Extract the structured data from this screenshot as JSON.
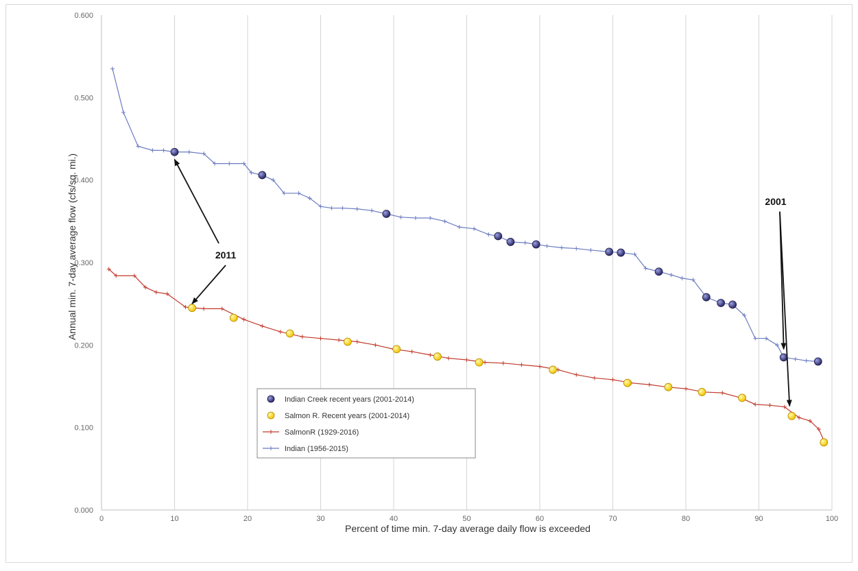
{
  "chart_data": {
    "type": "line",
    "xlabel": "Percent of time min. 7-day average daily flow is exceeded",
    "ylabel": "Annual min. 7-day average flow (cfs/sq. mi.)",
    "xlim": [
      0,
      100
    ],
    "ylim": [
      0.0,
      0.6
    ],
    "x_ticks": [
      0,
      10,
      20,
      30,
      40,
      50,
      60,
      70,
      80,
      90,
      100
    ],
    "y_ticks": [
      0.0,
      0.1,
      0.2,
      0.3,
      0.4,
      0.5,
      0.6
    ],
    "y_tick_labels": [
      "0.000",
      "0.100",
      "0.200",
      "0.300",
      "0.400",
      "0.500",
      "0.600"
    ],
    "grid": "vertical",
    "legend_placement": "lower-left-center",
    "series": [
      {
        "name": "Indian Creek recent years (2001-2014)",
        "marker": "circle",
        "color": "#3d3a7a",
        "line": false,
        "x": [
          10,
          22,
          39,
          54.3,
          56,
          59.5,
          69.5,
          71.1,
          76.3,
          82.8,
          84.8,
          86.4,
          93.4,
          98.1
        ],
        "y": [
          0.434,
          0.406,
          0.359,
          0.332,
          0.325,
          0.322,
          0.313,
          0.312,
          0.289,
          0.258,
          0.251,
          0.249,
          0.185,
          0.18
        ]
      },
      {
        "name": "Salmon R. Recent years (2001-2014)",
        "marker": "circle",
        "color": "#ffe000",
        "line": false,
        "x": [
          12.4,
          18.1,
          25.8,
          33.7,
          40.4,
          46,
          51.7,
          61.8,
          72,
          77.6,
          82.2,
          87.7,
          94.5,
          98.9
        ],
        "y": [
          0.245,
          0.233,
          0.214,
          0.204,
          0.195,
          0.186,
          0.179,
          0.17,
          0.154,
          0.149,
          0.143,
          0.136,
          0.114,
          0.082
        ]
      },
      {
        "name": "SalmonR (1929-2016)",
        "marker": "plus",
        "color": "#c0392b",
        "line": true,
        "x": [
          1,
          2,
          4.5,
          6,
          7.5,
          9,
          11.5,
          14,
          16.5,
          19.5,
          22,
          24.5,
          27.5,
          30,
          32.5,
          35,
          37.5,
          40,
          42.5,
          45,
          47.5,
          50,
          52.5,
          55,
          57.5,
          60,
          62.5,
          65,
          67.5,
          70,
          72.5,
          75,
          77.5,
          80,
          82.5,
          85,
          87.5,
          89.5,
          91.5,
          93.5,
          95.5,
          97,
          98.2,
          99
        ],
        "y": [
          0.292,
          0.284,
          0.284,
          0.27,
          0.264,
          0.262,
          0.246,
          0.244,
          0.244,
          0.231,
          0.223,
          0.216,
          0.21,
          0.208,
          0.206,
          0.204,
          0.2,
          0.195,
          0.192,
          0.188,
          0.184,
          0.182,
          0.179,
          0.178,
          0.176,
          0.174,
          0.17,
          0.164,
          0.16,
          0.158,
          0.154,
          0.152,
          0.149,
          0.147,
          0.143,
          0.142,
          0.136,
          0.128,
          0.127,
          0.125,
          0.112,
          0.108,
          0.098,
          0.082
        ]
      },
      {
        "name": "Indian (1956-2015)",
        "marker": "plus",
        "color": "#6b7bc0",
        "line": true,
        "x": [
          1.5,
          3,
          5,
          7,
          8.5,
          10,
          12,
          14,
          15.5,
          17.5,
          19.5,
          20.5,
          22,
          23.5,
          25,
          27,
          28.5,
          30,
          31.5,
          33,
          35,
          37,
          39,
          41,
          43,
          45,
          47,
          49,
          51,
          53,
          54.3,
          56,
          58,
          59.5,
          61,
          63,
          65,
          67,
          69.5,
          71.1,
          73,
          74.5,
          76.3,
          78,
          79.5,
          81,
          82.8,
          84.8,
          86.4,
          88,
          89.5,
          91,
          92.5,
          93.4,
          95,
          96.5,
          98.1
        ],
        "y": [
          0.535,
          0.482,
          0.441,
          0.436,
          0.436,
          0.434,
          0.434,
          0.432,
          0.42,
          0.42,
          0.42,
          0.409,
          0.406,
          0.4,
          0.384,
          0.384,
          0.378,
          0.368,
          0.366,
          0.366,
          0.365,
          0.363,
          0.359,
          0.355,
          0.354,
          0.354,
          0.35,
          0.343,
          0.341,
          0.334,
          0.332,
          0.325,
          0.324,
          0.322,
          0.32,
          0.318,
          0.317,
          0.315,
          0.313,
          0.312,
          0.31,
          0.293,
          0.289,
          0.285,
          0.281,
          0.279,
          0.258,
          0.251,
          0.249,
          0.236,
          0.208,
          0.208,
          0.2,
          0.185,
          0.183,
          0.181,
          0.18
        ]
      }
    ],
    "annotations": [
      {
        "text": "2011",
        "text_x": 17,
        "text_y": 0.305,
        "targets": [
          [
            10,
            0.425
          ],
          [
            12.4,
            0.25
          ]
        ]
      },
      {
        "text": "2001",
        "text_x": 92.3,
        "text_y": 0.37,
        "targets": [
          [
            93.4,
            0.195
          ],
          [
            94.2,
            0.126
          ]
        ]
      }
    ]
  }
}
